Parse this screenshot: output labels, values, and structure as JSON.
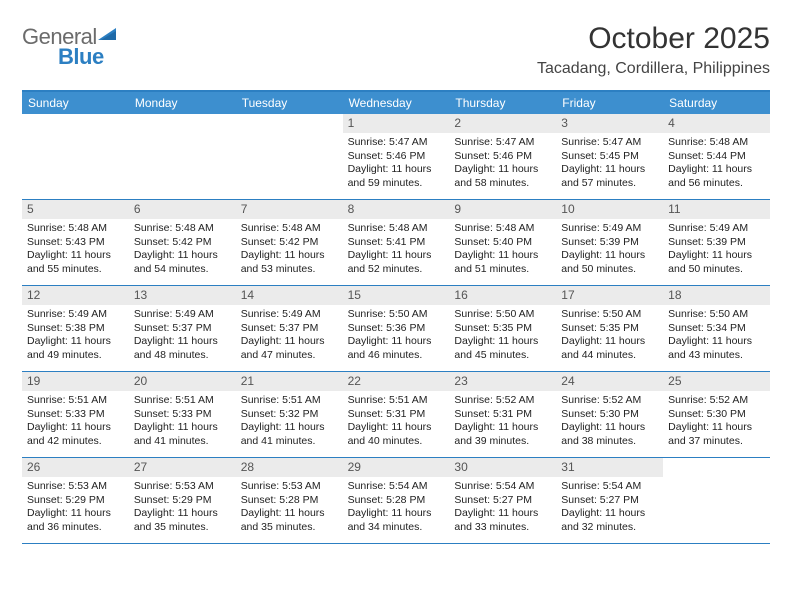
{
  "logo": {
    "text1": "General",
    "text2": "Blue"
  },
  "title": "October 2025",
  "location": "Tacadang, Cordillera, Philippines",
  "colors": {
    "header_bg": "#3d8fcf",
    "border": "#2c7fc2",
    "daynum_bg": "#ebebeb",
    "text": "#222222"
  },
  "days_of_week": [
    "Sunday",
    "Monday",
    "Tuesday",
    "Wednesday",
    "Thursday",
    "Friday",
    "Saturday"
  ],
  "weeks": [
    [
      {
        "empty": true
      },
      {
        "empty": true
      },
      {
        "empty": true
      },
      {
        "num": "1",
        "sunrise": "Sunrise: 5:47 AM",
        "sunset": "Sunset: 5:46 PM",
        "day1": "Daylight: 11 hours",
        "day2": "and 59 minutes."
      },
      {
        "num": "2",
        "sunrise": "Sunrise: 5:47 AM",
        "sunset": "Sunset: 5:46 PM",
        "day1": "Daylight: 11 hours",
        "day2": "and 58 minutes."
      },
      {
        "num": "3",
        "sunrise": "Sunrise: 5:47 AM",
        "sunset": "Sunset: 5:45 PM",
        "day1": "Daylight: 11 hours",
        "day2": "and 57 minutes."
      },
      {
        "num": "4",
        "sunrise": "Sunrise: 5:48 AM",
        "sunset": "Sunset: 5:44 PM",
        "day1": "Daylight: 11 hours",
        "day2": "and 56 minutes."
      }
    ],
    [
      {
        "num": "5",
        "sunrise": "Sunrise: 5:48 AM",
        "sunset": "Sunset: 5:43 PM",
        "day1": "Daylight: 11 hours",
        "day2": "and 55 minutes."
      },
      {
        "num": "6",
        "sunrise": "Sunrise: 5:48 AM",
        "sunset": "Sunset: 5:42 PM",
        "day1": "Daylight: 11 hours",
        "day2": "and 54 minutes."
      },
      {
        "num": "7",
        "sunrise": "Sunrise: 5:48 AM",
        "sunset": "Sunset: 5:42 PM",
        "day1": "Daylight: 11 hours",
        "day2": "and 53 minutes."
      },
      {
        "num": "8",
        "sunrise": "Sunrise: 5:48 AM",
        "sunset": "Sunset: 5:41 PM",
        "day1": "Daylight: 11 hours",
        "day2": "and 52 minutes."
      },
      {
        "num": "9",
        "sunrise": "Sunrise: 5:48 AM",
        "sunset": "Sunset: 5:40 PM",
        "day1": "Daylight: 11 hours",
        "day2": "and 51 minutes."
      },
      {
        "num": "10",
        "sunrise": "Sunrise: 5:49 AM",
        "sunset": "Sunset: 5:39 PM",
        "day1": "Daylight: 11 hours",
        "day2": "and 50 minutes."
      },
      {
        "num": "11",
        "sunrise": "Sunrise: 5:49 AM",
        "sunset": "Sunset: 5:39 PM",
        "day1": "Daylight: 11 hours",
        "day2": "and 50 minutes."
      }
    ],
    [
      {
        "num": "12",
        "sunrise": "Sunrise: 5:49 AM",
        "sunset": "Sunset: 5:38 PM",
        "day1": "Daylight: 11 hours",
        "day2": "and 49 minutes."
      },
      {
        "num": "13",
        "sunrise": "Sunrise: 5:49 AM",
        "sunset": "Sunset: 5:37 PM",
        "day1": "Daylight: 11 hours",
        "day2": "and 48 minutes."
      },
      {
        "num": "14",
        "sunrise": "Sunrise: 5:49 AM",
        "sunset": "Sunset: 5:37 PM",
        "day1": "Daylight: 11 hours",
        "day2": "and 47 minutes."
      },
      {
        "num": "15",
        "sunrise": "Sunrise: 5:50 AM",
        "sunset": "Sunset: 5:36 PM",
        "day1": "Daylight: 11 hours",
        "day2": "and 46 minutes."
      },
      {
        "num": "16",
        "sunrise": "Sunrise: 5:50 AM",
        "sunset": "Sunset: 5:35 PM",
        "day1": "Daylight: 11 hours",
        "day2": "and 45 minutes."
      },
      {
        "num": "17",
        "sunrise": "Sunrise: 5:50 AM",
        "sunset": "Sunset: 5:35 PM",
        "day1": "Daylight: 11 hours",
        "day2": "and 44 minutes."
      },
      {
        "num": "18",
        "sunrise": "Sunrise: 5:50 AM",
        "sunset": "Sunset: 5:34 PM",
        "day1": "Daylight: 11 hours",
        "day2": "and 43 minutes."
      }
    ],
    [
      {
        "num": "19",
        "sunrise": "Sunrise: 5:51 AM",
        "sunset": "Sunset: 5:33 PM",
        "day1": "Daylight: 11 hours",
        "day2": "and 42 minutes."
      },
      {
        "num": "20",
        "sunrise": "Sunrise: 5:51 AM",
        "sunset": "Sunset: 5:33 PM",
        "day1": "Daylight: 11 hours",
        "day2": "and 41 minutes."
      },
      {
        "num": "21",
        "sunrise": "Sunrise: 5:51 AM",
        "sunset": "Sunset: 5:32 PM",
        "day1": "Daylight: 11 hours",
        "day2": "and 41 minutes."
      },
      {
        "num": "22",
        "sunrise": "Sunrise: 5:51 AM",
        "sunset": "Sunset: 5:31 PM",
        "day1": "Daylight: 11 hours",
        "day2": "and 40 minutes."
      },
      {
        "num": "23",
        "sunrise": "Sunrise: 5:52 AM",
        "sunset": "Sunset: 5:31 PM",
        "day1": "Daylight: 11 hours",
        "day2": "and 39 minutes."
      },
      {
        "num": "24",
        "sunrise": "Sunrise: 5:52 AM",
        "sunset": "Sunset: 5:30 PM",
        "day1": "Daylight: 11 hours",
        "day2": "and 38 minutes."
      },
      {
        "num": "25",
        "sunrise": "Sunrise: 5:52 AM",
        "sunset": "Sunset: 5:30 PM",
        "day1": "Daylight: 11 hours",
        "day2": "and 37 minutes."
      }
    ],
    [
      {
        "num": "26",
        "sunrise": "Sunrise: 5:53 AM",
        "sunset": "Sunset: 5:29 PM",
        "day1": "Daylight: 11 hours",
        "day2": "and 36 minutes."
      },
      {
        "num": "27",
        "sunrise": "Sunrise: 5:53 AM",
        "sunset": "Sunset: 5:29 PM",
        "day1": "Daylight: 11 hours",
        "day2": "and 35 minutes."
      },
      {
        "num": "28",
        "sunrise": "Sunrise: 5:53 AM",
        "sunset": "Sunset: 5:28 PM",
        "day1": "Daylight: 11 hours",
        "day2": "and 35 minutes."
      },
      {
        "num": "29",
        "sunrise": "Sunrise: 5:54 AM",
        "sunset": "Sunset: 5:28 PM",
        "day1": "Daylight: 11 hours",
        "day2": "and 34 minutes."
      },
      {
        "num": "30",
        "sunrise": "Sunrise: 5:54 AM",
        "sunset": "Sunset: 5:27 PM",
        "day1": "Daylight: 11 hours",
        "day2": "and 33 minutes."
      },
      {
        "num": "31",
        "sunrise": "Sunrise: 5:54 AM",
        "sunset": "Sunset: 5:27 PM",
        "day1": "Daylight: 11 hours",
        "day2": "and 32 minutes."
      },
      {
        "empty": true
      }
    ]
  ]
}
